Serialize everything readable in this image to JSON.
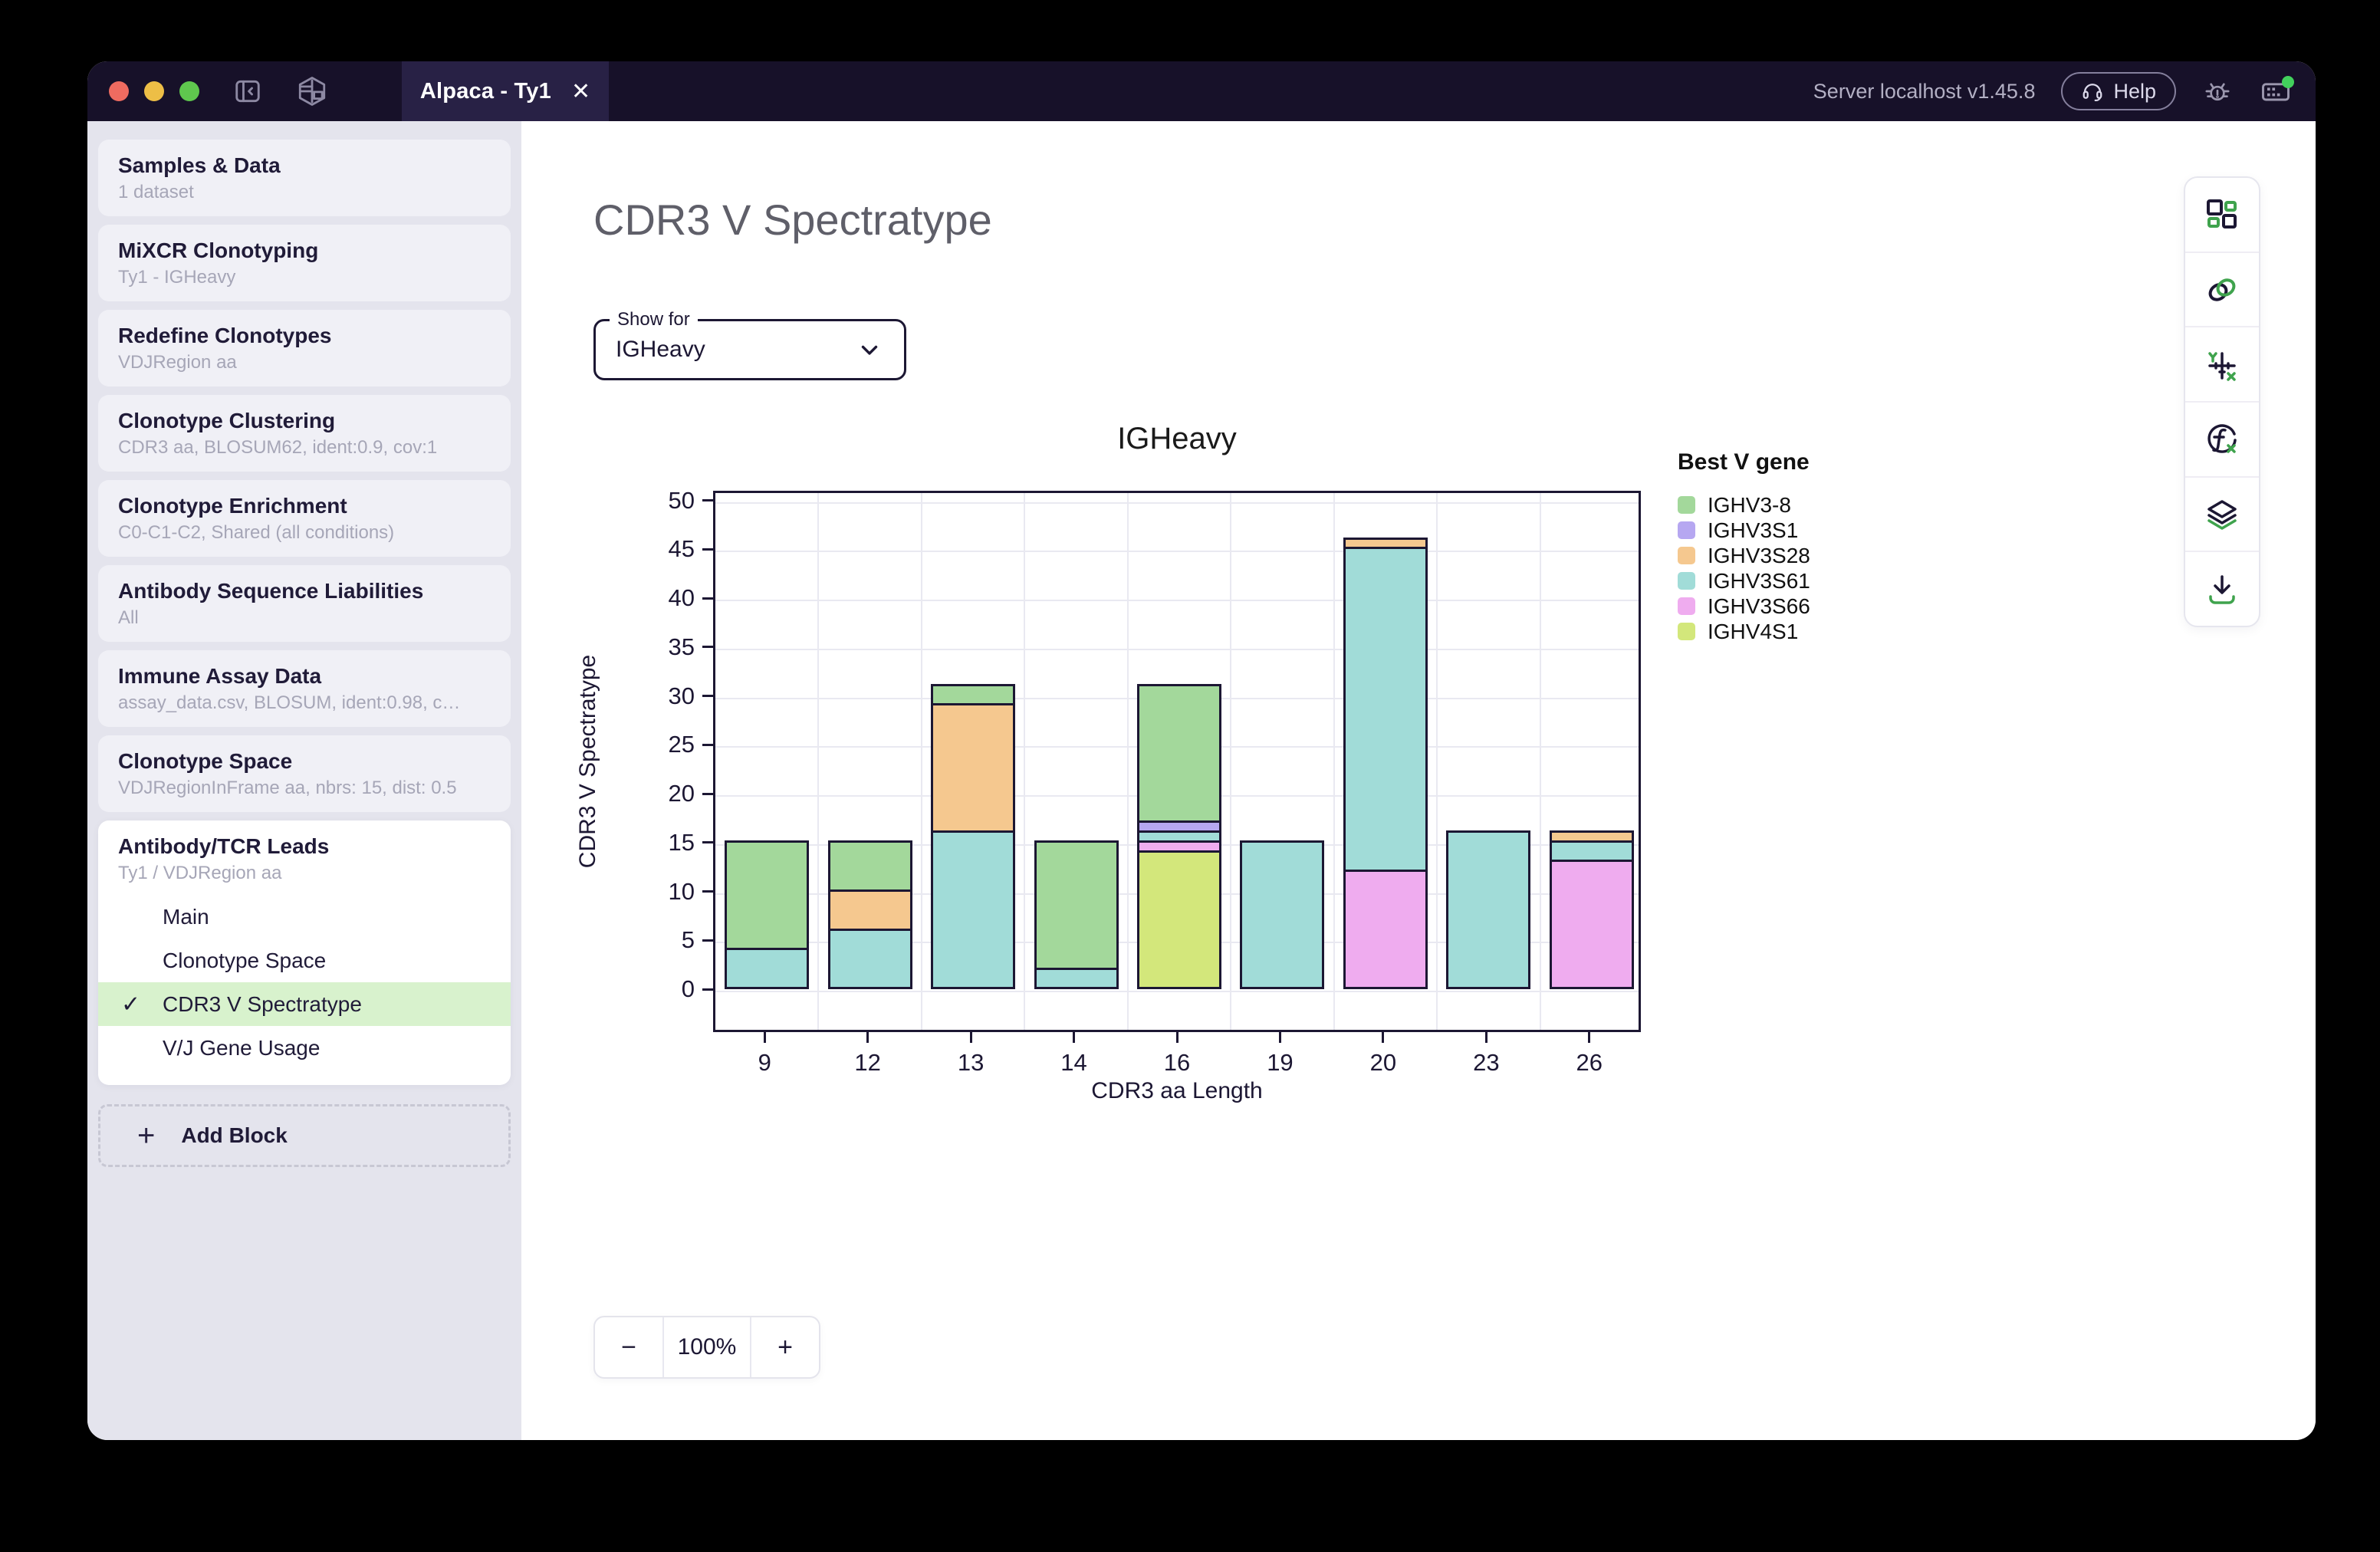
{
  "topbar": {
    "tab_title": "Alpaca - Ty1",
    "close_glyph": "✕",
    "server_text": "Server localhost v1.45.8",
    "help_label": "Help",
    "traffic_colors": [
      "#ee6b60",
      "#edbe46",
      "#5fc74e"
    ]
  },
  "sidebar": {
    "blocks": [
      {
        "title": "Samples & Data",
        "subtitle": "1 dataset"
      },
      {
        "title": "MiXCR Clonotyping",
        "subtitle": "Ty1 - IGHeavy"
      },
      {
        "title": "Redefine Clonotypes",
        "subtitle": "VDJRegion aa"
      },
      {
        "title": "Clonotype Clustering",
        "subtitle": "CDR3 aa, BLOSUM62, ident:0.9, cov:1"
      },
      {
        "title": "Clonotype Enrichment",
        "subtitle": "C0-C1-C2, Shared (all conditions)"
      },
      {
        "title": "Antibody Sequence Liabilities",
        "subtitle": "All"
      },
      {
        "title": "Immune Assay Data",
        "subtitle": "assay_data.csv, BLOSUM, ident:0.98, c…"
      },
      {
        "title": "Clonotype Space",
        "subtitle": "VDJRegionInFrame aa, nbrs: 15, dist: 0.5"
      }
    ],
    "active_block": {
      "title": "Antibody/TCR Leads",
      "subtitle": "Ty1 / VDJRegion aa"
    },
    "subnav": [
      {
        "label": "Main",
        "selected": false
      },
      {
        "label": "Clonotype Space",
        "selected": false
      },
      {
        "label": "CDR3 V Spectratype",
        "selected": true
      },
      {
        "label": "V/J Gene Usage",
        "selected": false
      }
    ],
    "checkmark_glyph": "✓",
    "add_block_label": "Add Block",
    "add_block_plus": "+",
    "selected_bg": "#d8f2cd"
  },
  "main": {
    "page_title": "CDR3 V Spectratype",
    "show_for_label": "Show for",
    "show_for_value": "IGHeavy"
  },
  "toolbar": {
    "icons": [
      "blocks-icon",
      "link-icon",
      "axes-icon",
      "function-icon",
      "layers-icon",
      "download-icon"
    ],
    "accent_green": "#3fa34d",
    "accent_navy": "#1c1733"
  },
  "zoom_control": {
    "minus": "−",
    "value": "100%",
    "plus": "+"
  },
  "chart_data": {
    "type": "bar",
    "stacked": true,
    "title": "IGHeavy",
    "xlabel": "CDR3 aa Length",
    "ylabel": "CDR3 V Spectratype",
    "categories": [
      "9",
      "12",
      "13",
      "14",
      "16",
      "19",
      "20",
      "23",
      "26"
    ],
    "yticks": [
      0,
      5,
      10,
      15,
      20,
      25,
      30,
      35,
      40,
      45,
      50
    ],
    "ylim": [
      0,
      51
    ],
    "grid": true,
    "legend_title": "Best V gene",
    "legend_position": "right",
    "series": [
      {
        "name": "IGHV3-8",
        "color": "#a3d89b",
        "values": [
          11,
          5,
          2,
          13,
          14,
          0,
          0,
          0,
          0
        ]
      },
      {
        "name": "IGHV3S1",
        "color": "#b6a7f1",
        "values": [
          0,
          0,
          0,
          0,
          1,
          0,
          0,
          0,
          0
        ]
      },
      {
        "name": "IGHV3S28",
        "color": "#f5c88f",
        "values": [
          0,
          4,
          13,
          0,
          0,
          0,
          1,
          0,
          1
        ]
      },
      {
        "name": "IGHV3S61",
        "color": "#a1dcd8",
        "values": [
          4,
          6,
          16,
          2,
          1,
          15,
          33,
          16,
          2
        ]
      },
      {
        "name": "IGHV3S66",
        "color": "#efacef",
        "values": [
          0,
          0,
          0,
          0,
          1,
          0,
          12,
          0,
          13
        ]
      },
      {
        "name": "IGHV4S1",
        "color": "#d3e77b",
        "values": [
          0,
          0,
          0,
          0,
          14,
          0,
          0,
          0,
          0
        ]
      }
    ],
    "stack_order_bottom_to_top": [
      "IGHV4S1",
      "IGHV3S66",
      "IGHV3S61",
      "IGHV3S28",
      "IGHV3S1",
      "IGHV3-8"
    ],
    "totals": [
      15,
      15,
      31,
      15,
      31,
      15,
      46,
      16,
      16
    ],
    "bar_outline_color": "#1c1733"
  }
}
